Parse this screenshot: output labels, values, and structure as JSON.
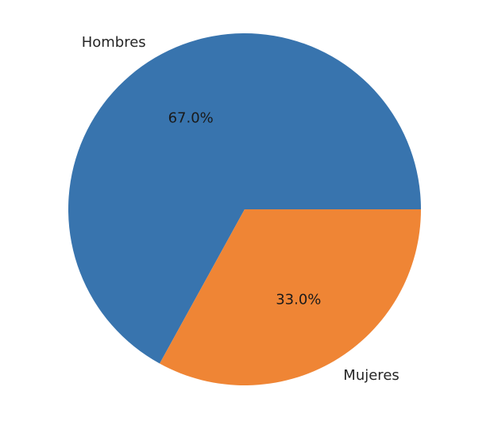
{
  "chart_data": {
    "type": "pie",
    "categories": [
      "Hombres",
      "Mujeres"
    ],
    "values": [
      67.0,
      33.0
    ],
    "value_labels": [
      "67.0%",
      "33.0%"
    ],
    "colors": [
      "#3874ae",
      "#ef8535"
    ],
    "legend": "none"
  }
}
